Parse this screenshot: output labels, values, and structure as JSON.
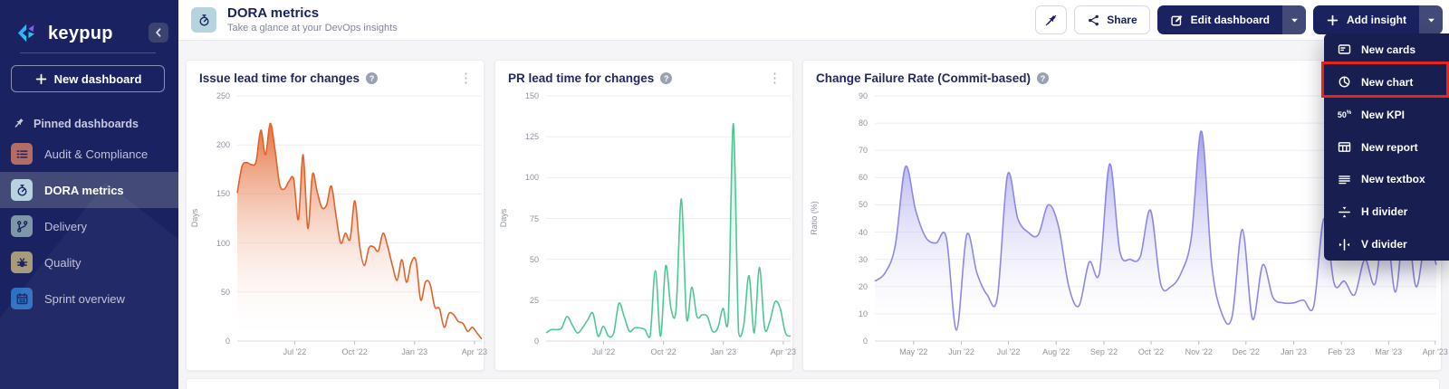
{
  "sidebar": {
    "brand": "keypup",
    "new_dashboard_label": "New dashboard",
    "pinned_label": "Pinned dashboards",
    "items": [
      {
        "label": "Audit & Compliance",
        "icon": "checklist-icon",
        "tile_color": "#b26e66",
        "active": false
      },
      {
        "label": "DORA metrics",
        "icon": "gauge-icon",
        "tile_color": "#b7d3df",
        "active": true
      },
      {
        "label": "Delivery",
        "icon": "branch-icon",
        "tile_color": "#7e97a8",
        "active": false
      },
      {
        "label": "Quality",
        "icon": "bug-icon",
        "tile_color": "#a79b7e",
        "active": false
      },
      {
        "label": "Sprint overview",
        "icon": "calendar-icon",
        "tile_color": "#2e70c2",
        "active": false
      }
    ]
  },
  "header": {
    "title": "DORA metrics",
    "subtitle": "Take a glance at your DevOps insights",
    "tile_color": "#b7d3df",
    "share_label": "Share",
    "edit_label": "Edit dashboard",
    "add_label": "Add insight"
  },
  "menu": {
    "kpi_icon_text": "50%",
    "items": [
      {
        "label": "New cards",
        "icon": "cards-icon",
        "highlighted": false
      },
      {
        "label": "New chart",
        "icon": "chart-icon",
        "highlighted": true
      },
      {
        "label": "New KPI",
        "icon": "kpi-icon",
        "highlighted": false
      },
      {
        "label": "New report",
        "icon": "report-icon",
        "highlighted": false
      },
      {
        "label": "New textbox",
        "icon": "textbox-icon",
        "highlighted": false
      },
      {
        "label": "H divider",
        "icon": "h-divider-icon",
        "highlighted": false
      },
      {
        "label": "V divider",
        "icon": "v-divider-icon",
        "highlighted": false
      }
    ]
  },
  "annotation": {
    "highlight_target": "New chart",
    "color": "#e8251d"
  },
  "chart_data": [
    {
      "type": "area",
      "title": "Issue lead time for changes",
      "ylabel": "Days",
      "ylim": [
        0,
        250
      ],
      "yticks": [
        0,
        50,
        100,
        150,
        200,
        250
      ],
      "line_color": "#e2622b",
      "fill_top_opacity": 0.9,
      "grid": true,
      "xticks": [
        {
          "label": "Jul '22",
          "f": 0.235
        },
        {
          "label": "Oct '22",
          "f": 0.48
        },
        {
          "label": "Jan '23",
          "f": 0.725
        },
        {
          "label": "Apr '23",
          "f": 0.97
        }
      ],
      "values": [
        151,
        178,
        182,
        180,
        183,
        215,
        190,
        222,
        196,
        160,
        155,
        163,
        165,
        124,
        190,
        115,
        170,
        152,
        136,
        139,
        158,
        128,
        100,
        110,
        104,
        143,
        98,
        77,
        95,
        96,
        92,
        110,
        96,
        77,
        62,
        83,
        60,
        80,
        82,
        42,
        60,
        58,
        35,
        33,
        14,
        28,
        27,
        20,
        18,
        10,
        14,
        8,
        2
      ]
    },
    {
      "type": "area",
      "title": "PR lead time for changes",
      "ylabel": "Days",
      "ylim": [
        0,
        150
      ],
      "yticks": [
        0,
        25,
        50,
        75,
        100,
        125,
        150
      ],
      "line_color": "#4fc795",
      "fill_top_opacity": 0.45,
      "grid": true,
      "xticks": [
        {
          "label": "Jul '22",
          "f": 0.235
        },
        {
          "label": "Oct '22",
          "f": 0.48
        },
        {
          "label": "Jan '23",
          "f": 0.725
        },
        {
          "label": "Apr '23",
          "f": 0.97
        }
      ],
      "values": [
        5,
        7,
        7,
        8,
        15,
        10,
        5,
        8,
        13,
        17,
        3,
        9,
        3,
        5,
        23,
        15,
        6,
        8,
        8,
        7,
        3,
        43,
        3,
        46,
        20,
        20,
        87,
        14,
        33,
        15,
        16,
        15,
        6,
        8,
        20,
        13,
        133,
        5,
        10,
        40,
        5,
        45,
        8,
        12,
        24,
        20,
        5,
        3
      ]
    },
    {
      "type": "area",
      "title": "Change Failure Rate (Commit-based)",
      "ylabel": "Ratio (%)",
      "ylim": [
        0,
        90
      ],
      "yticks": [
        0,
        10,
        20,
        30,
        40,
        50,
        60,
        70,
        80,
        90
      ],
      "line_color": "#8d88e6",
      "fill_top_opacity": 0.8,
      "grid": true,
      "xticks": [
        {
          "label": "May '22",
          "f": 0.069
        },
        {
          "label": "Jun '22",
          "f": 0.154
        },
        {
          "label": "Jul '22",
          "f": 0.238
        },
        {
          "label": "Aug '22",
          "f": 0.323
        },
        {
          "label": "Sep '22",
          "f": 0.408
        },
        {
          "label": "Oct '22",
          "f": 0.492
        },
        {
          "label": "Nov '22",
          "f": 0.577
        },
        {
          "label": "Dec '22",
          "f": 0.661
        },
        {
          "label": "Jan '23",
          "f": 0.746
        },
        {
          "label": "Feb '23",
          "f": 0.831
        },
        {
          "label": "Mar '23",
          "f": 0.915
        },
        {
          "label": "Apr '23",
          "f": 0.998
        }
      ],
      "values": [
        22,
        25,
        35,
        64,
        48,
        38,
        36,
        38,
        4,
        39,
        25,
        17,
        16,
        61,
        45,
        40,
        39,
        50,
        42,
        20,
        13,
        29,
        25,
        65,
        33,
        30,
        31,
        48,
        21,
        20,
        25,
        38,
        77,
        28,
        10,
        9,
        41,
        8,
        28,
        16,
        14,
        14,
        15,
        13,
        45,
        21,
        22,
        17,
        30,
        21,
        45,
        18,
        48,
        20,
        38,
        28
      ]
    }
  ]
}
